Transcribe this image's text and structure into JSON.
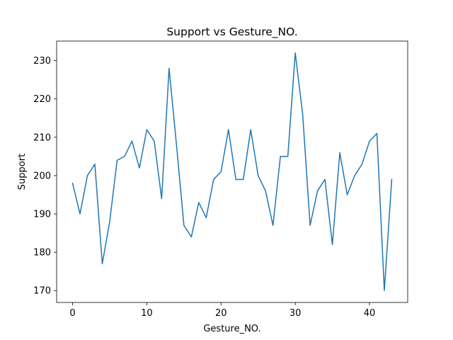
{
  "chart_data": {
    "type": "line",
    "title": "Support vs Gesture_NO.",
    "xlabel": "Gesture_NO.",
    "ylabel": "Support",
    "x": [
      0,
      1,
      2,
      3,
      4,
      5,
      6,
      7,
      8,
      9,
      10,
      11,
      12,
      13,
      14,
      15,
      16,
      17,
      18,
      19,
      20,
      21,
      22,
      23,
      24,
      25,
      26,
      27,
      28,
      29,
      30,
      31,
      32,
      33,
      34,
      35,
      36,
      37,
      38,
      39,
      40,
      41,
      42,
      43
    ],
    "series": [
      {
        "values": [
          198,
          190,
          200,
          203,
          177,
          188,
          204,
          205,
          209,
          202,
          212,
          209,
          194,
          228,
          208,
          187,
          184,
          193,
          189,
          199,
          201,
          212,
          199,
          199,
          212,
          200,
          196,
          187,
          205,
          205,
          232,
          216,
          187,
          196,
          199,
          182,
          206,
          195,
          200,
          203,
          209,
          211,
          170,
          199
        ],
        "color": "#1f77b4"
      }
    ],
    "xlim": [
      -2.15,
      45.15
    ],
    "ylim": [
      166.9,
      235.1
    ],
    "xticks": [
      0,
      10,
      20,
      30,
      40
    ],
    "yticks": [
      170,
      180,
      190,
      200,
      210,
      220,
      230
    ],
    "xtick_labels": [
      "0",
      "10",
      "20",
      "30",
      "40"
    ],
    "ytick_labels": [
      "170",
      "180",
      "190",
      "200",
      "210",
      "220",
      "230"
    ],
    "grid": false,
    "legend": "none"
  }
}
